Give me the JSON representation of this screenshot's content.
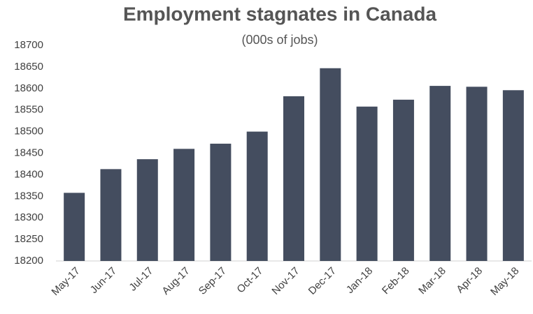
{
  "chart_data": {
    "type": "bar",
    "title": "Employment stagnates in Canada",
    "subtitle": "(000s of jobs)",
    "categories": [
      "May-17",
      "Jun-17",
      "Jul-17",
      "Aug-17",
      "Sep-17",
      "Oct-17",
      "Nov-17",
      "Dec-17",
      "Jan-18",
      "Feb-18",
      "Mar-18",
      "Apr-18",
      "May-18"
    ],
    "values": [
      18358,
      18413,
      18436,
      18460,
      18472,
      18500,
      18582,
      18647,
      18558,
      18574,
      18606,
      18604,
      18596
    ],
    "color": "#444d5f",
    "ylim": [
      18200,
      18700
    ],
    "yticks": [
      18200,
      18250,
      18300,
      18350,
      18400,
      18450,
      18500,
      18550,
      18600,
      18650,
      18700
    ],
    "grid": false
  }
}
